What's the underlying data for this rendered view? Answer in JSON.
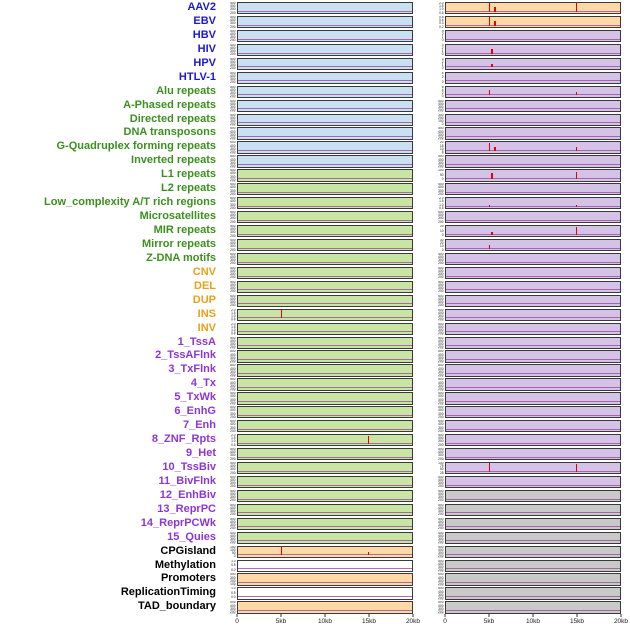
{
  "chart_data": {
    "type": "line",
    "x_ticks": [
      "0",
      "5kb",
      "10kb",
      "15kb",
      "20kb"
    ],
    "x_range_kb": [
      0,
      20
    ],
    "default_yticks": [
      "500",
      "400",
      "300",
      "200",
      "100",
      "0"
    ],
    "label_colors": {
      "virus": "#1a1ad8",
      "repeat": "#3c9020",
      "sv": "#e8a11a",
      "chromhmm": "#8c36d6",
      "other": "#000000"
    },
    "panel_colors": {
      "blue": "#c9dff2",
      "green": "#c9e5a4",
      "orange": "#fed9a6",
      "purple": "#d4c3e6",
      "gray": "#c9c9c9",
      "white": "#ffffff"
    },
    "baseline_color": "#a055a0",
    "spike_color": "#e60000",
    "rows": [
      {
        "label": "AAV2",
        "group": "virus",
        "left": {
          "bg": "blue",
          "spikes": []
        },
        "right": {
          "bg": "orange",
          "yticks": [
            "2.0",
            "1.5",
            "1.0",
            "0.5",
            "0.0"
          ],
          "spikes": [
            [
              5,
              0.95
            ],
            [
              5.6,
              0.5
            ],
            [
              15,
              0.88
            ]
          ]
        }
      },
      {
        "label": "EBV",
        "group": "virus",
        "left": {
          "bg": "blue",
          "spikes": []
        },
        "right": {
          "bg": "orange",
          "yticks": [
            "0.5",
            "0.4",
            "0.3",
            "0.2",
            "0.1",
            "0.0"
          ],
          "spikes": [
            [
              5,
              0.95
            ],
            [
              5.6,
              0.45
            ]
          ]
        }
      },
      {
        "label": "HBV",
        "group": "virus",
        "left": {
          "bg": "blue",
          "spikes": []
        },
        "right": {
          "bg": "purple",
          "yticks": [
            "3",
            "2",
            "1",
            "0"
          ],
          "spikes": []
        }
      },
      {
        "label": "HIV",
        "group": "virus",
        "left": {
          "bg": "blue",
          "spikes": []
        },
        "right": {
          "bg": "purple",
          "yticks": [
            "3",
            "2",
            "1",
            "0"
          ],
          "spikes": [
            [
              5.3,
              0.45
            ]
          ]
        }
      },
      {
        "label": "HPV",
        "group": "virus",
        "left": {
          "bg": "blue",
          "spikes": []
        },
        "right": {
          "bg": "purple",
          "yticks": [
            "3",
            "2",
            "1",
            "0"
          ],
          "spikes": [
            [
              5.3,
              0.35
            ]
          ]
        }
      },
      {
        "label": "HTLV-1",
        "group": "virus",
        "left": {
          "bg": "blue",
          "spikes": []
        },
        "right": {
          "bg": "purple",
          "yticks": [
            "4",
            "2",
            "0"
          ],
          "spikes": []
        }
      },
      {
        "label": "Alu repeats",
        "group": "repeat",
        "left": {
          "bg": "blue",
          "spikes": []
        },
        "right": {
          "bg": "purple",
          "yticks": [
            "6",
            "4",
            "2",
            "0"
          ],
          "spikes": [
            [
              5,
              0.55
            ],
            [
              15,
              0.3
            ]
          ]
        }
      },
      {
        "label": "A-Phased repeats",
        "group": "repeat",
        "left": {
          "bg": "blue",
          "spikes": []
        },
        "right": {
          "bg": "purple",
          "spikes": []
        }
      },
      {
        "label": "Directed repeats",
        "group": "repeat",
        "left": {
          "bg": "blue",
          "spikes": []
        },
        "right": {
          "bg": "purple",
          "yticks": [
            "300",
            "200",
            "100",
            "0"
          ],
          "spikes": []
        }
      },
      {
        "label": "DNA transposons",
        "group": "repeat",
        "left": {
          "bg": "blue",
          "spikes": []
        },
        "right": {
          "bg": "purple",
          "spikes": []
        }
      },
      {
        "label": "G-Quadruplex forming repeats",
        "group": "repeat",
        "left": {
          "bg": "blue",
          "spikes": []
        },
        "right": {
          "bg": "purple",
          "yticks": [
            "20",
            "15",
            "10",
            "5",
            "0"
          ],
          "spikes": [
            [
              5,
              0.8
            ],
            [
              5.6,
              0.4
            ],
            [
              15,
              0.45
            ]
          ]
        }
      },
      {
        "label": "Inverted repeats",
        "group": "repeat",
        "left": {
          "bg": "blue",
          "spikes": []
        },
        "right": {
          "bg": "purple",
          "spikes": []
        }
      },
      {
        "label": "L1 repeats",
        "group": "repeat",
        "left": {
          "bg": "green",
          "spikes": []
        },
        "right": {
          "bg": "purple",
          "yticks": [
            "100",
            "50",
            "0"
          ],
          "spikes": [
            [
              5.3,
              0.6
            ],
            [
              15,
              0.78
            ]
          ]
        }
      },
      {
        "label": "L2 repeats",
        "group": "repeat",
        "left": {
          "bg": "green",
          "spikes": []
        },
        "right": {
          "bg": "purple",
          "spikes": []
        }
      },
      {
        "label": "Low_complexity A/T rich regions",
        "group": "repeat",
        "left": {
          "bg": "green",
          "spikes": []
        },
        "right": {
          "bg": "purple",
          "yticks": [
            "2.0",
            "1.5",
            "1.0",
            "0.5",
            "0.0"
          ],
          "spikes": [
            [
              5,
              0.2
            ],
            [
              15,
              0.15
            ]
          ]
        }
      },
      {
        "label": "Microsatellites",
        "group": "repeat",
        "left": {
          "bg": "green",
          "spikes": []
        },
        "right": {
          "bg": "purple",
          "spikes": []
        }
      },
      {
        "label": "MIR repeats",
        "group": "repeat",
        "left": {
          "bg": "green",
          "spikes": []
        },
        "right": {
          "bg": "purple",
          "yticks": [
            "20",
            "10",
            "0"
          ],
          "spikes": [
            [
              5.3,
              0.25
            ],
            [
              15,
              0.85
            ]
          ]
        }
      },
      {
        "label": "Mirror repeats",
        "group": "repeat",
        "left": {
          "bg": "green",
          "spikes": []
        },
        "right": {
          "bg": "purple",
          "yticks": [
            "30",
            "20",
            "10",
            "0"
          ],
          "spikes": [
            [
              5,
              0.35
            ]
          ]
        }
      },
      {
        "label": "Z-DNA motifs",
        "group": "repeat",
        "left": {
          "bg": "green",
          "spikes": []
        },
        "right": {
          "bg": "purple",
          "spikes": []
        }
      },
      {
        "label": "CNV",
        "group": "sv",
        "left": {
          "bg": "green",
          "spikes": []
        },
        "right": {
          "bg": "purple",
          "spikes": []
        }
      },
      {
        "label": "DEL",
        "group": "sv",
        "left": {
          "bg": "green",
          "spikes": []
        },
        "right": {
          "bg": "purple",
          "spikes": []
        }
      },
      {
        "label": "DUP",
        "group": "sv",
        "left": {
          "bg": "green",
          "spikes": []
        },
        "right": {
          "bg": "purple",
          "spikes": []
        }
      },
      {
        "label": "INS",
        "group": "sv",
        "left": {
          "bg": "green",
          "yticks": [
            "2.0",
            "1.5",
            "1.0",
            "0.5",
            "0.0"
          ],
          "spikes": [
            [
              5,
              0.85
            ]
          ]
        },
        "right": {
          "bg": "purple",
          "spikes": []
        }
      },
      {
        "label": "INV",
        "group": "sv",
        "left": {
          "bg": "green",
          "yticks": [
            "2.0",
            "1.5",
            "1.0",
            "0.5",
            "0.0"
          ],
          "spikes": []
        },
        "right": {
          "bg": "purple",
          "spikes": []
        }
      },
      {
        "label": "1_TssA",
        "group": "chromhmm",
        "left": {
          "bg": "green",
          "spikes": []
        },
        "right": {
          "bg": "purple",
          "spikes": []
        }
      },
      {
        "label": "2_TssAFlnk",
        "group": "chromhmm",
        "left": {
          "bg": "green",
          "spikes": []
        },
        "right": {
          "bg": "purple",
          "spikes": []
        }
      },
      {
        "label": "3_TxFlnk",
        "group": "chromhmm",
        "left": {
          "bg": "green",
          "spikes": []
        },
        "right": {
          "bg": "purple",
          "spikes": []
        }
      },
      {
        "label": "4_Tx",
        "group": "chromhmm",
        "left": {
          "bg": "green",
          "spikes": []
        },
        "right": {
          "bg": "purple",
          "spikes": []
        }
      },
      {
        "label": "5_TxWk",
        "group": "chromhmm",
        "left": {
          "bg": "green",
          "spikes": []
        },
        "right": {
          "bg": "purple",
          "spikes": []
        }
      },
      {
        "label": "6_EnhG",
        "group": "chromhmm",
        "left": {
          "bg": "green",
          "spikes": []
        },
        "right": {
          "bg": "purple",
          "spikes": []
        }
      },
      {
        "label": "7_Enh",
        "group": "chromhmm",
        "left": {
          "bg": "green",
          "spikes": []
        },
        "right": {
          "bg": "purple",
          "spikes": []
        }
      },
      {
        "label": "8_ZNF_Rpts",
        "group": "chromhmm",
        "left": {
          "bg": "green",
          "yticks": [
            "2.0",
            "1.5",
            "1.0",
            "0.5",
            "0.0"
          ],
          "spikes": [
            [
              15,
              0.8
            ]
          ]
        },
        "right": {
          "bg": "purple",
          "spikes": []
        }
      },
      {
        "label": "9_Het",
        "group": "chromhmm",
        "left": {
          "bg": "green",
          "spikes": []
        },
        "right": {
          "bg": "purple",
          "spikes": []
        }
      },
      {
        "label": "10_TssBiv",
        "group": "chromhmm",
        "left": {
          "bg": "green",
          "spikes": []
        },
        "right": {
          "bg": "purple",
          "yticks": [
            "100",
            "75",
            "50",
            "25",
            "0"
          ],
          "spikes": [
            [
              5,
              0.9
            ],
            [
              15,
              0.8
            ]
          ]
        }
      },
      {
        "label": "11_BivFlnk",
        "group": "chromhmm",
        "left": {
          "bg": "green",
          "spikes": []
        },
        "right": {
          "bg": "purple",
          "spikes": []
        }
      },
      {
        "label": "12_EnhBiv",
        "group": "chromhmm",
        "left": {
          "bg": "green",
          "spikes": []
        },
        "right": {
          "bg": "gray",
          "spikes": []
        }
      },
      {
        "label": "13_ReprPC",
        "group": "chromhmm",
        "left": {
          "bg": "green",
          "spikes": []
        },
        "right": {
          "bg": "gray",
          "spikes": []
        }
      },
      {
        "label": "14_ReprPCWk",
        "group": "chromhmm",
        "left": {
          "bg": "green",
          "spikes": []
        },
        "right": {
          "bg": "gray",
          "spikes": []
        }
      },
      {
        "label": "15_Quies",
        "group": "chromhmm",
        "left": {
          "bg": "green",
          "spikes": []
        },
        "right": {
          "bg": "gray",
          "spikes": []
        }
      },
      {
        "label": "CPGisland",
        "group": "other",
        "left": {
          "bg": "orange",
          "yticks": [
            "150",
            "100",
            "50",
            "0"
          ],
          "spikes": [
            [
              5,
              0.9
            ],
            [
              15,
              0.35
            ]
          ]
        },
        "right": {
          "bg": "gray",
          "spikes": []
        }
      },
      {
        "label": "Methylation",
        "group": "other",
        "left": {
          "bg": "white",
          "yticks": [
            "1.0",
            "0.5",
            "0.0"
          ],
          "spikes": []
        },
        "right": {
          "bg": "gray",
          "spikes": []
        }
      },
      {
        "label": "Promoters",
        "group": "other",
        "left": {
          "bg": "orange",
          "yticks": [
            "400",
            "300",
            "200",
            "100",
            "0"
          ],
          "spikes": []
        },
        "right": {
          "bg": "gray",
          "spikes": []
        }
      },
      {
        "label": "ReplicationTiming",
        "group": "other",
        "left": {
          "bg": "white",
          "yticks": [
            "1.0",
            "0.5",
            "0.0"
          ],
          "spikes": []
        },
        "right": {
          "bg": "gray",
          "spikes": []
        }
      },
      {
        "label": "TAD_boundary",
        "group": "other",
        "left": {
          "bg": "orange",
          "spikes": []
        },
        "right": {
          "bg": "gray",
          "spikes": []
        }
      }
    ]
  }
}
